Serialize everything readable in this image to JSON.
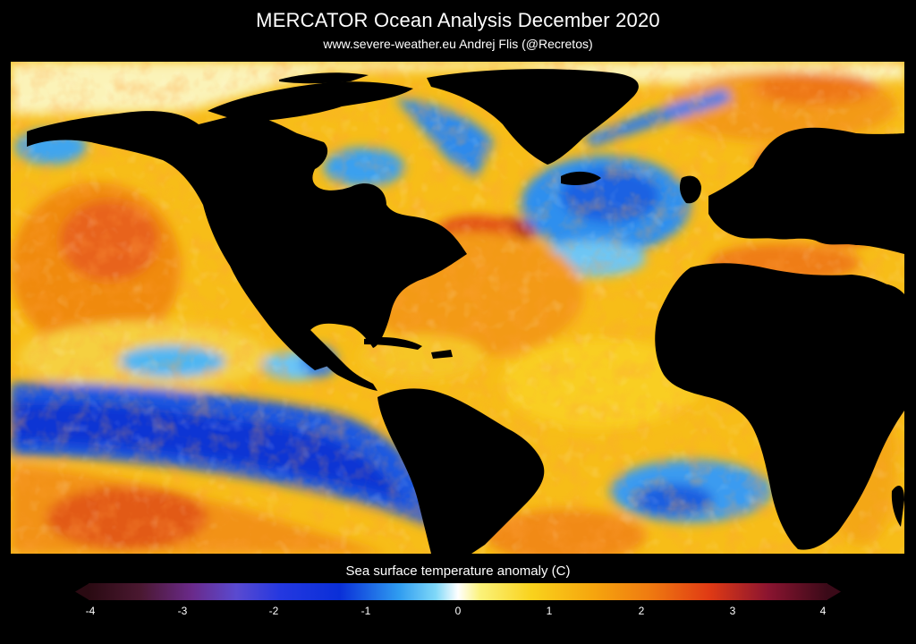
{
  "header": {
    "title": "MERCATOR Ocean Analysis  December 2020",
    "credit": "www.severe-weather.eu   Andrej Flis (@Recretos)"
  },
  "colorbar": {
    "label": "Sea surface temperature anomaly (C)",
    "ticks": [
      "-4",
      "-3",
      "-2",
      "-1",
      "0",
      "1",
      "2",
      "3",
      "4"
    ],
    "range": [
      -4,
      4
    ],
    "units": "C"
  },
  "colors": {
    "land": "#000000",
    "ice": "#fdfdf0",
    "strong_negative": "#0a2fd8",
    "weak_negative": "#2f9cf0",
    "neutral": "#f6f2dc",
    "weak_positive": "#f9d21c",
    "moderate_positive": "#f6a70e",
    "strong_positive": "#e64a12",
    "extreme_positive": "#7a0b24"
  }
}
